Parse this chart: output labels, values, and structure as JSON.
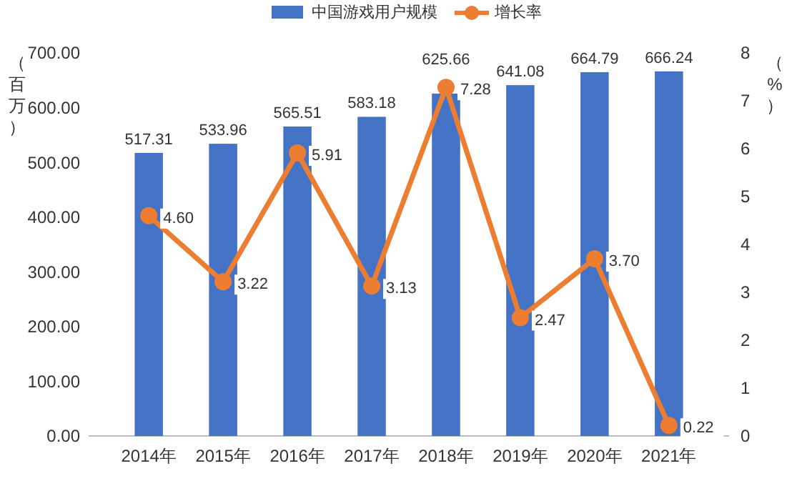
{
  "chart_data": {
    "type": "bar",
    "categories": [
      "2014年",
      "2015年",
      "2016年",
      "2017年",
      "2018年",
      "2019年",
      "2020年",
      "2021年"
    ],
    "series": [
      {
        "name": "中国游戏用户规模",
        "type": "bar",
        "color": "#4472c4",
        "values": [
          517.31,
          533.96,
          565.51,
          583.18,
          625.66,
          641.08,
          664.79,
          666.24
        ],
        "value_labels": [
          "517.31",
          "533.96",
          "565.51",
          "583.18",
          "625.66",
          "641.08",
          "664.79",
          "666.24"
        ]
      },
      {
        "name": "增长率",
        "type": "line",
        "axis": "y2",
        "color": "#ed7d31",
        "marker": "circle",
        "values": [
          4.6,
          3.22,
          5.91,
          3.13,
          7.28,
          2.47,
          3.7,
          0.22
        ],
        "value_labels": [
          "4.60",
          "3.22",
          "5.91",
          "3.13",
          "7.28",
          "2.47",
          "3.70",
          "0.22"
        ]
      }
    ],
    "ylabel": "（百万）",
    "y2label": "（%）",
    "ylim": [
      0,
      700
    ],
    "yticks": [
      {
        "value": 0,
        "label": "0.00"
      },
      {
        "value": 100,
        "label": "100.00"
      },
      {
        "value": 200,
        "label": "200.00"
      },
      {
        "value": 300,
        "label": "300.00"
      },
      {
        "value": 400,
        "label": "400.00"
      },
      {
        "value": 500,
        "label": "500.00"
      },
      {
        "value": 600,
        "label": "600.00"
      },
      {
        "value": 700,
        "label": "700.00"
      }
    ],
    "y2lim": [
      0,
      8
    ],
    "y2ticks": [
      0,
      1,
      2,
      3,
      4,
      5,
      6,
      7,
      8
    ],
    "legend": "top",
    "grid": false
  }
}
